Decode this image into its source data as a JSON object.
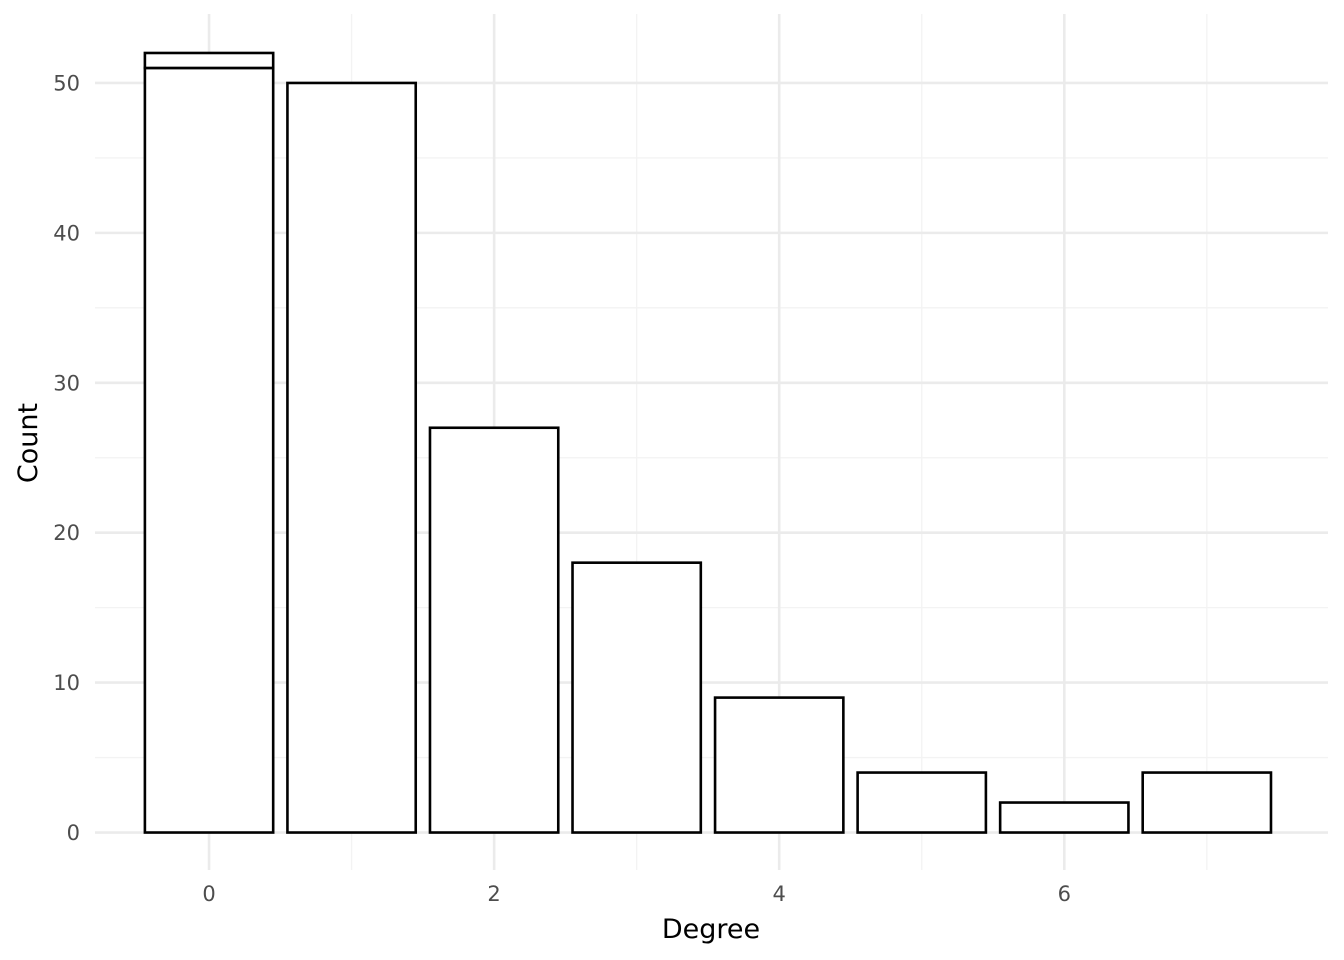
{
  "chart_data": {
    "type": "bar",
    "title": "",
    "xlabel": "Degree",
    "ylabel": "Count",
    "x": [
      0,
      1,
      2,
      3,
      4,
      5,
      6,
      7
    ],
    "values": [
      51,
      50,
      27,
      18,
      9,
      4,
      2,
      4
    ],
    "stacked_segments": [
      {
        "x": 0,
        "from": 51,
        "to": 52
      }
    ],
    "xlim": [
      -0.8,
      7.85
    ],
    "ylim": [
      -2.5,
      54.6
    ],
    "x_ticks": [
      0,
      2,
      4,
      6
    ],
    "y_ticks": [
      0,
      10,
      20,
      30,
      40,
      50
    ],
    "grid": true,
    "bar_fill": "#ffffff",
    "bar_outline": "#000000",
    "grid_major_color": "#ebebeb",
    "grid_minor_color": "#f3f3f3",
    "tick_label_color": "#4d4d4d",
    "title_color": "#000000"
  }
}
